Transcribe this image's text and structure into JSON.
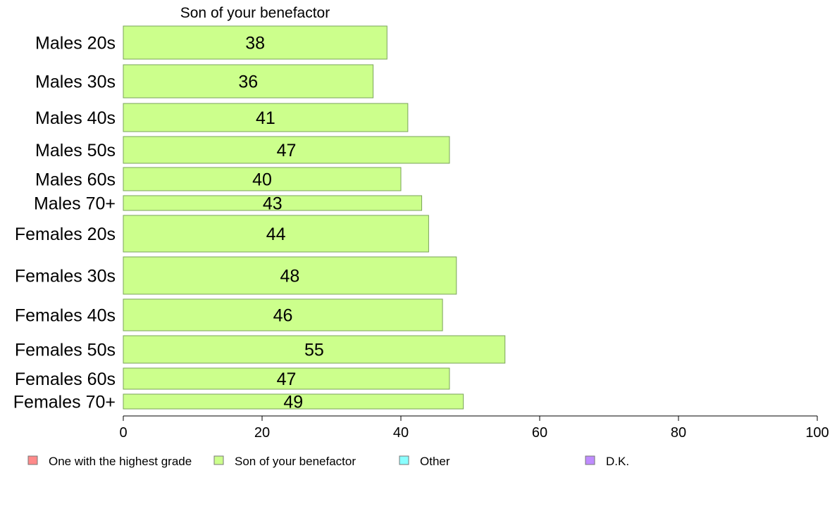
{
  "chart_data": {
    "type": "bar",
    "orientation": "horizontal",
    "title": "Son of your benefactor",
    "categories": [
      "Males 20s",
      "Males 30s",
      "Males 40s",
      "Males 50s",
      "Males 60s",
      "Males 70+",
      "Females 20s",
      "Females 30s",
      "Females 40s",
      "Females 50s",
      "Females 60s",
      "Females 70+"
    ],
    "values": [
      38,
      36,
      41,
      47,
      40,
      43,
      44,
      48,
      46,
      55,
      47,
      49
    ],
    "value_labels": [
      "38",
      "36",
      "41",
      "47",
      "40",
      "43",
      "44",
      "48",
      "46",
      "55",
      "47",
      "49"
    ],
    "xlim": [
      0,
      100
    ],
    "xticks": [
      "0",
      "20",
      "40",
      "60",
      "80",
      "100"
    ],
    "xlabel": "",
    "ylabel": "",
    "grid": false,
    "legend_position": "bottom",
    "legend": [
      {
        "label": "One with the highest grade",
        "color": "#ff8a8a"
      },
      {
        "label": "Son of your benefactor",
        "color": "#ccff8c"
      },
      {
        "label": "Other",
        "color": "#8affff"
      },
      {
        "label": "D.K.",
        "color": "#bf8cff"
      }
    ],
    "bar_color": "#ccff8c",
    "bar_edge_color": "#7aa35a"
  }
}
